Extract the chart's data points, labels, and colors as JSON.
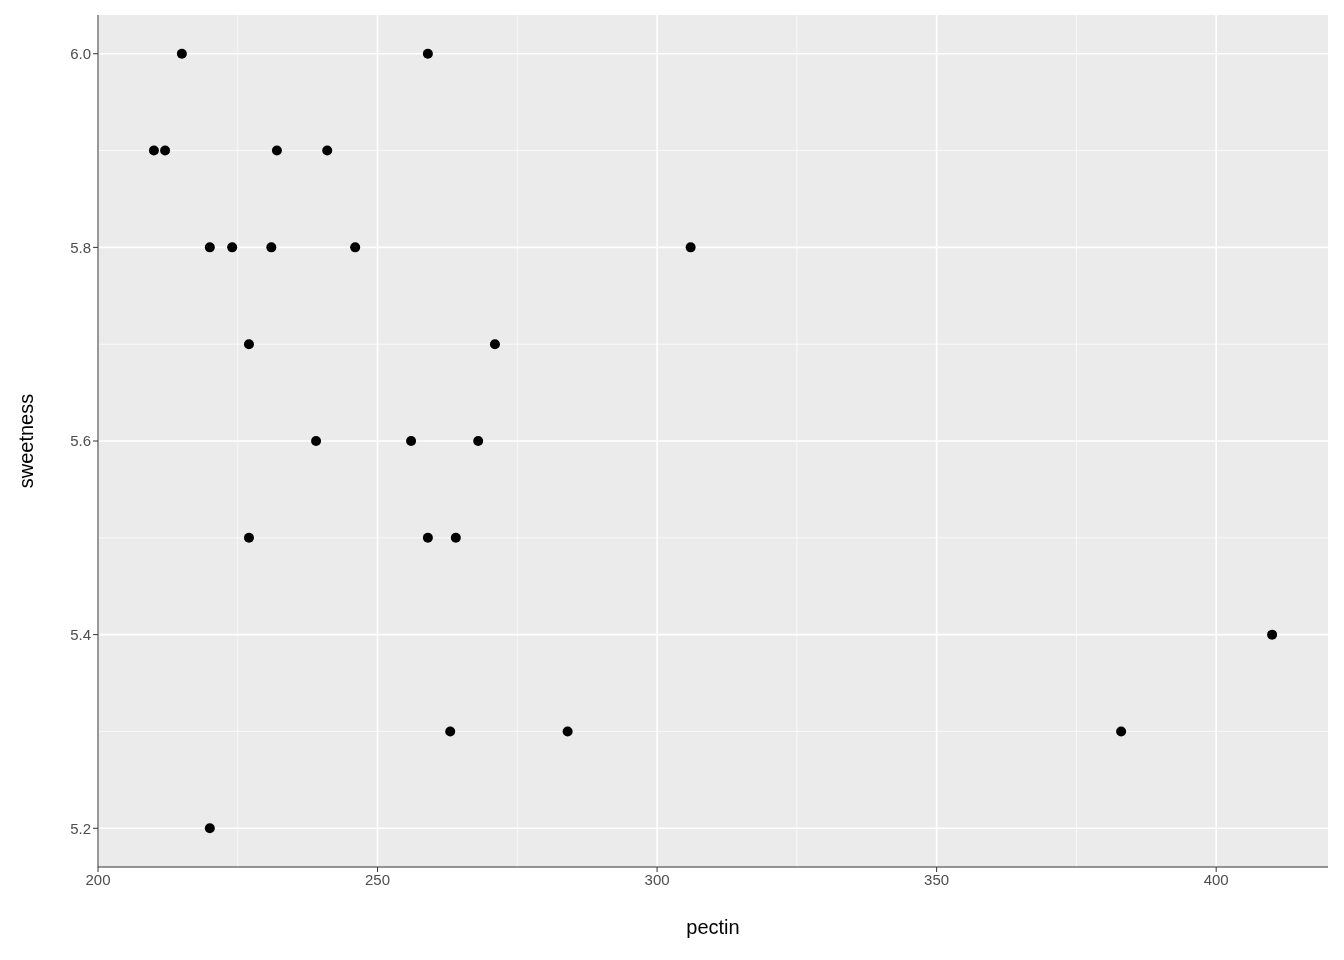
{
  "chart_data": {
    "type": "scatter",
    "xlabel": "pectin",
    "ylabel": "sweetness",
    "x": [
      210,
      212,
      215,
      220,
      224,
      227,
      227,
      220,
      231,
      232,
      241,
      239,
      246,
      256,
      259,
      259,
      264,
      263,
      268,
      271,
      284,
      306,
      383,
      410
    ],
    "values": [
      5.9,
      5.9,
      6.0,
      5.8,
      5.8,
      5.7,
      5.5,
      5.2,
      5.8,
      5.9,
      5.9,
      5.6,
      5.8,
      5.6,
      6.0,
      5.5,
      5.5,
      5.3,
      5.6,
      5.7,
      5.3,
      5.8,
      5.3,
      5.4
    ],
    "color": "#000000",
    "marker": "circle",
    "xlim": [
      200,
      420
    ],
    "xticks": [
      200,
      250,
      300,
      350,
      400
    ],
    "ylim": [
      5.16,
      6.04
    ],
    "yticks": [
      {
        "value": 5.2,
        "label": "5.2"
      },
      {
        "value": 5.4,
        "label": "5.4"
      },
      {
        "value": 5.6,
        "label": "5.6"
      },
      {
        "value": 5.8,
        "label": "5.8"
      },
      {
        "value": 6.0,
        "label": "6.0"
      }
    ],
    "grid": true
  }
}
